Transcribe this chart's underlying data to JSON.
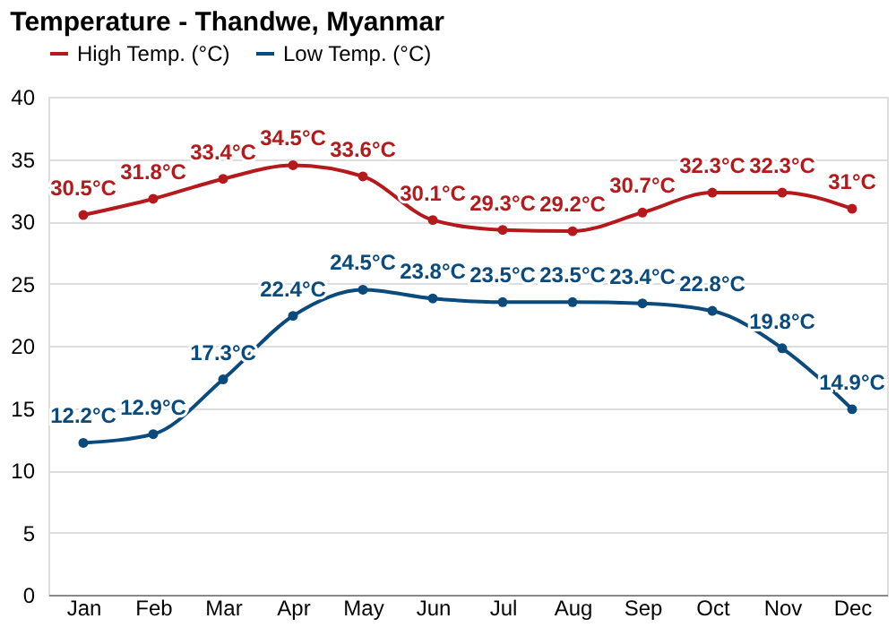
{
  "chart_data": {
    "type": "line",
    "title": "Temperature - Thandwe, Myanmar",
    "categories": [
      "Jan",
      "Feb",
      "Mar",
      "Apr",
      "May",
      "Jun",
      "Jul",
      "Aug",
      "Sep",
      "Oct",
      "Nov",
      "Dec"
    ],
    "series": [
      {
        "name": "High Temp. (°C)",
        "color": "#b5191b",
        "values": [
          30.5,
          31.8,
          33.4,
          34.5,
          33.6,
          30.1,
          29.3,
          29.2,
          30.7,
          32.3,
          32.3,
          31
        ],
        "value_labels": [
          "30.5°C",
          "31.8°C",
          "33.4°C",
          "34.5°C",
          "33.6°C",
          "30.1°C",
          "29.3°C",
          "29.2°C",
          "30.7°C",
          "32.3°C",
          "32.3°C",
          "31°C"
        ]
      },
      {
        "name": "Low Temp. (°C)",
        "color": "#0b4a7d",
        "values": [
          12.2,
          12.9,
          17.3,
          22.4,
          24.5,
          23.8,
          23.5,
          23.5,
          23.4,
          22.8,
          19.8,
          14.9
        ],
        "value_labels": [
          "12.2°C",
          "12.9°C",
          "17.3°C",
          "22.4°C",
          "24.5°C",
          "23.8°C",
          "23.5°C",
          "23.5°C",
          "23.4°C",
          "22.8°C",
          "19.8°C",
          "14.9°C"
        ]
      }
    ],
    "ylim": [
      0,
      40
    ],
    "yticks": [
      0,
      5,
      10,
      15,
      20,
      25,
      30,
      35,
      40
    ],
    "grid": "y",
    "legend": "top left",
    "marker": "circle",
    "line_style": "solid"
  }
}
